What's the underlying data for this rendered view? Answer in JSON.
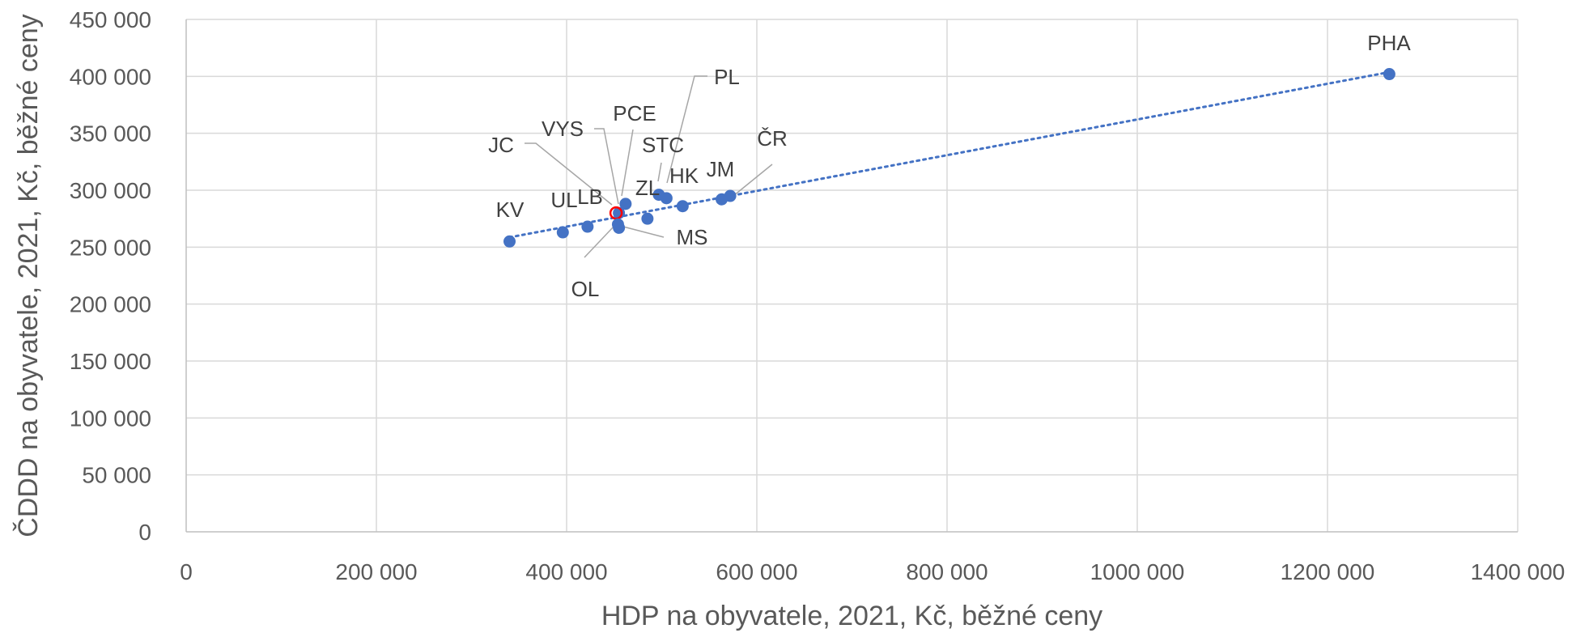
{
  "chart_data": {
    "type": "scatter",
    "title": "",
    "xlabel": "HDP na obyvatele, 2021, Kč, běžné ceny",
    "ylabel": "ČDDD na obyvatele, 2021, Kč, běžné ceny",
    "xlim": [
      0,
      1400000
    ],
    "ylim": [
      0,
      450000
    ],
    "x_ticks": [
      {
        "value": 0,
        "label": "0"
      },
      {
        "value": 200000,
        "label": "200 000"
      },
      {
        "value": 400000,
        "label": "400 000"
      },
      {
        "value": 600000,
        "label": "600 000"
      },
      {
        "value": 800000,
        "label": "800 000"
      },
      {
        "value": 1000000,
        "label": "1000 000"
      },
      {
        "value": 1200000,
        "label": "1200 000"
      },
      {
        "value": 1400000,
        "label": "1400 000"
      }
    ],
    "y_ticks": [
      {
        "value": 0,
        "label": "0"
      },
      {
        "value": 50000,
        "label": "50 000"
      },
      {
        "value": 100000,
        "label": "100 000"
      },
      {
        "value": 150000,
        "label": "150 000"
      },
      {
        "value": 200000,
        "label": "200 000"
      },
      {
        "value": 250000,
        "label": "250 000"
      },
      {
        "value": 300000,
        "label": "300 000"
      },
      {
        "value": 350000,
        "label": "350 000"
      },
      {
        "value": 400000,
        "label": "400 000"
      },
      {
        "value": 450000,
        "label": "450 000"
      }
    ],
    "grid": true,
    "trendline": {
      "type": "linear",
      "style": "dotted",
      "color": "#4472C4",
      "x_from": 340000,
      "x_to": 1265000
    },
    "marker_color": "#4472C4",
    "highlight_color": "#FF0000",
    "points": [
      {
        "label": "PHA",
        "x": 1265000,
        "y": 402000
      },
      {
        "label": "ČR",
        "x": 572000,
        "y": 295000
      },
      {
        "label": "JM",
        "x": 563000,
        "y": 292000
      },
      {
        "label": "HK",
        "x": 522000,
        "y": 286000
      },
      {
        "label": "PL",
        "x": 505000,
        "y": 293000
      },
      {
        "label": "STC",
        "x": 497000,
        "y": 296000
      },
      {
        "label": "ZL",
        "x": 485000,
        "y": 275000
      },
      {
        "label": "PCE",
        "x": 462000,
        "y": 288000
      },
      {
        "label": "VYS",
        "x": 455000,
        "y": 280000
      },
      {
        "label": "JC",
        "x": 452000,
        "y": 280000,
        "highlight": true
      },
      {
        "label": "MS",
        "x": 455000,
        "y": 267000
      },
      {
        "label": "OL",
        "x": 454000,
        "y": 270000
      },
      {
        "label": "LB",
        "x": 422000,
        "y": 268000
      },
      {
        "label": "UL",
        "x": 396000,
        "y": 263000
      },
      {
        "label": "KV",
        "x": 340000,
        "y": 255000
      }
    ]
  }
}
